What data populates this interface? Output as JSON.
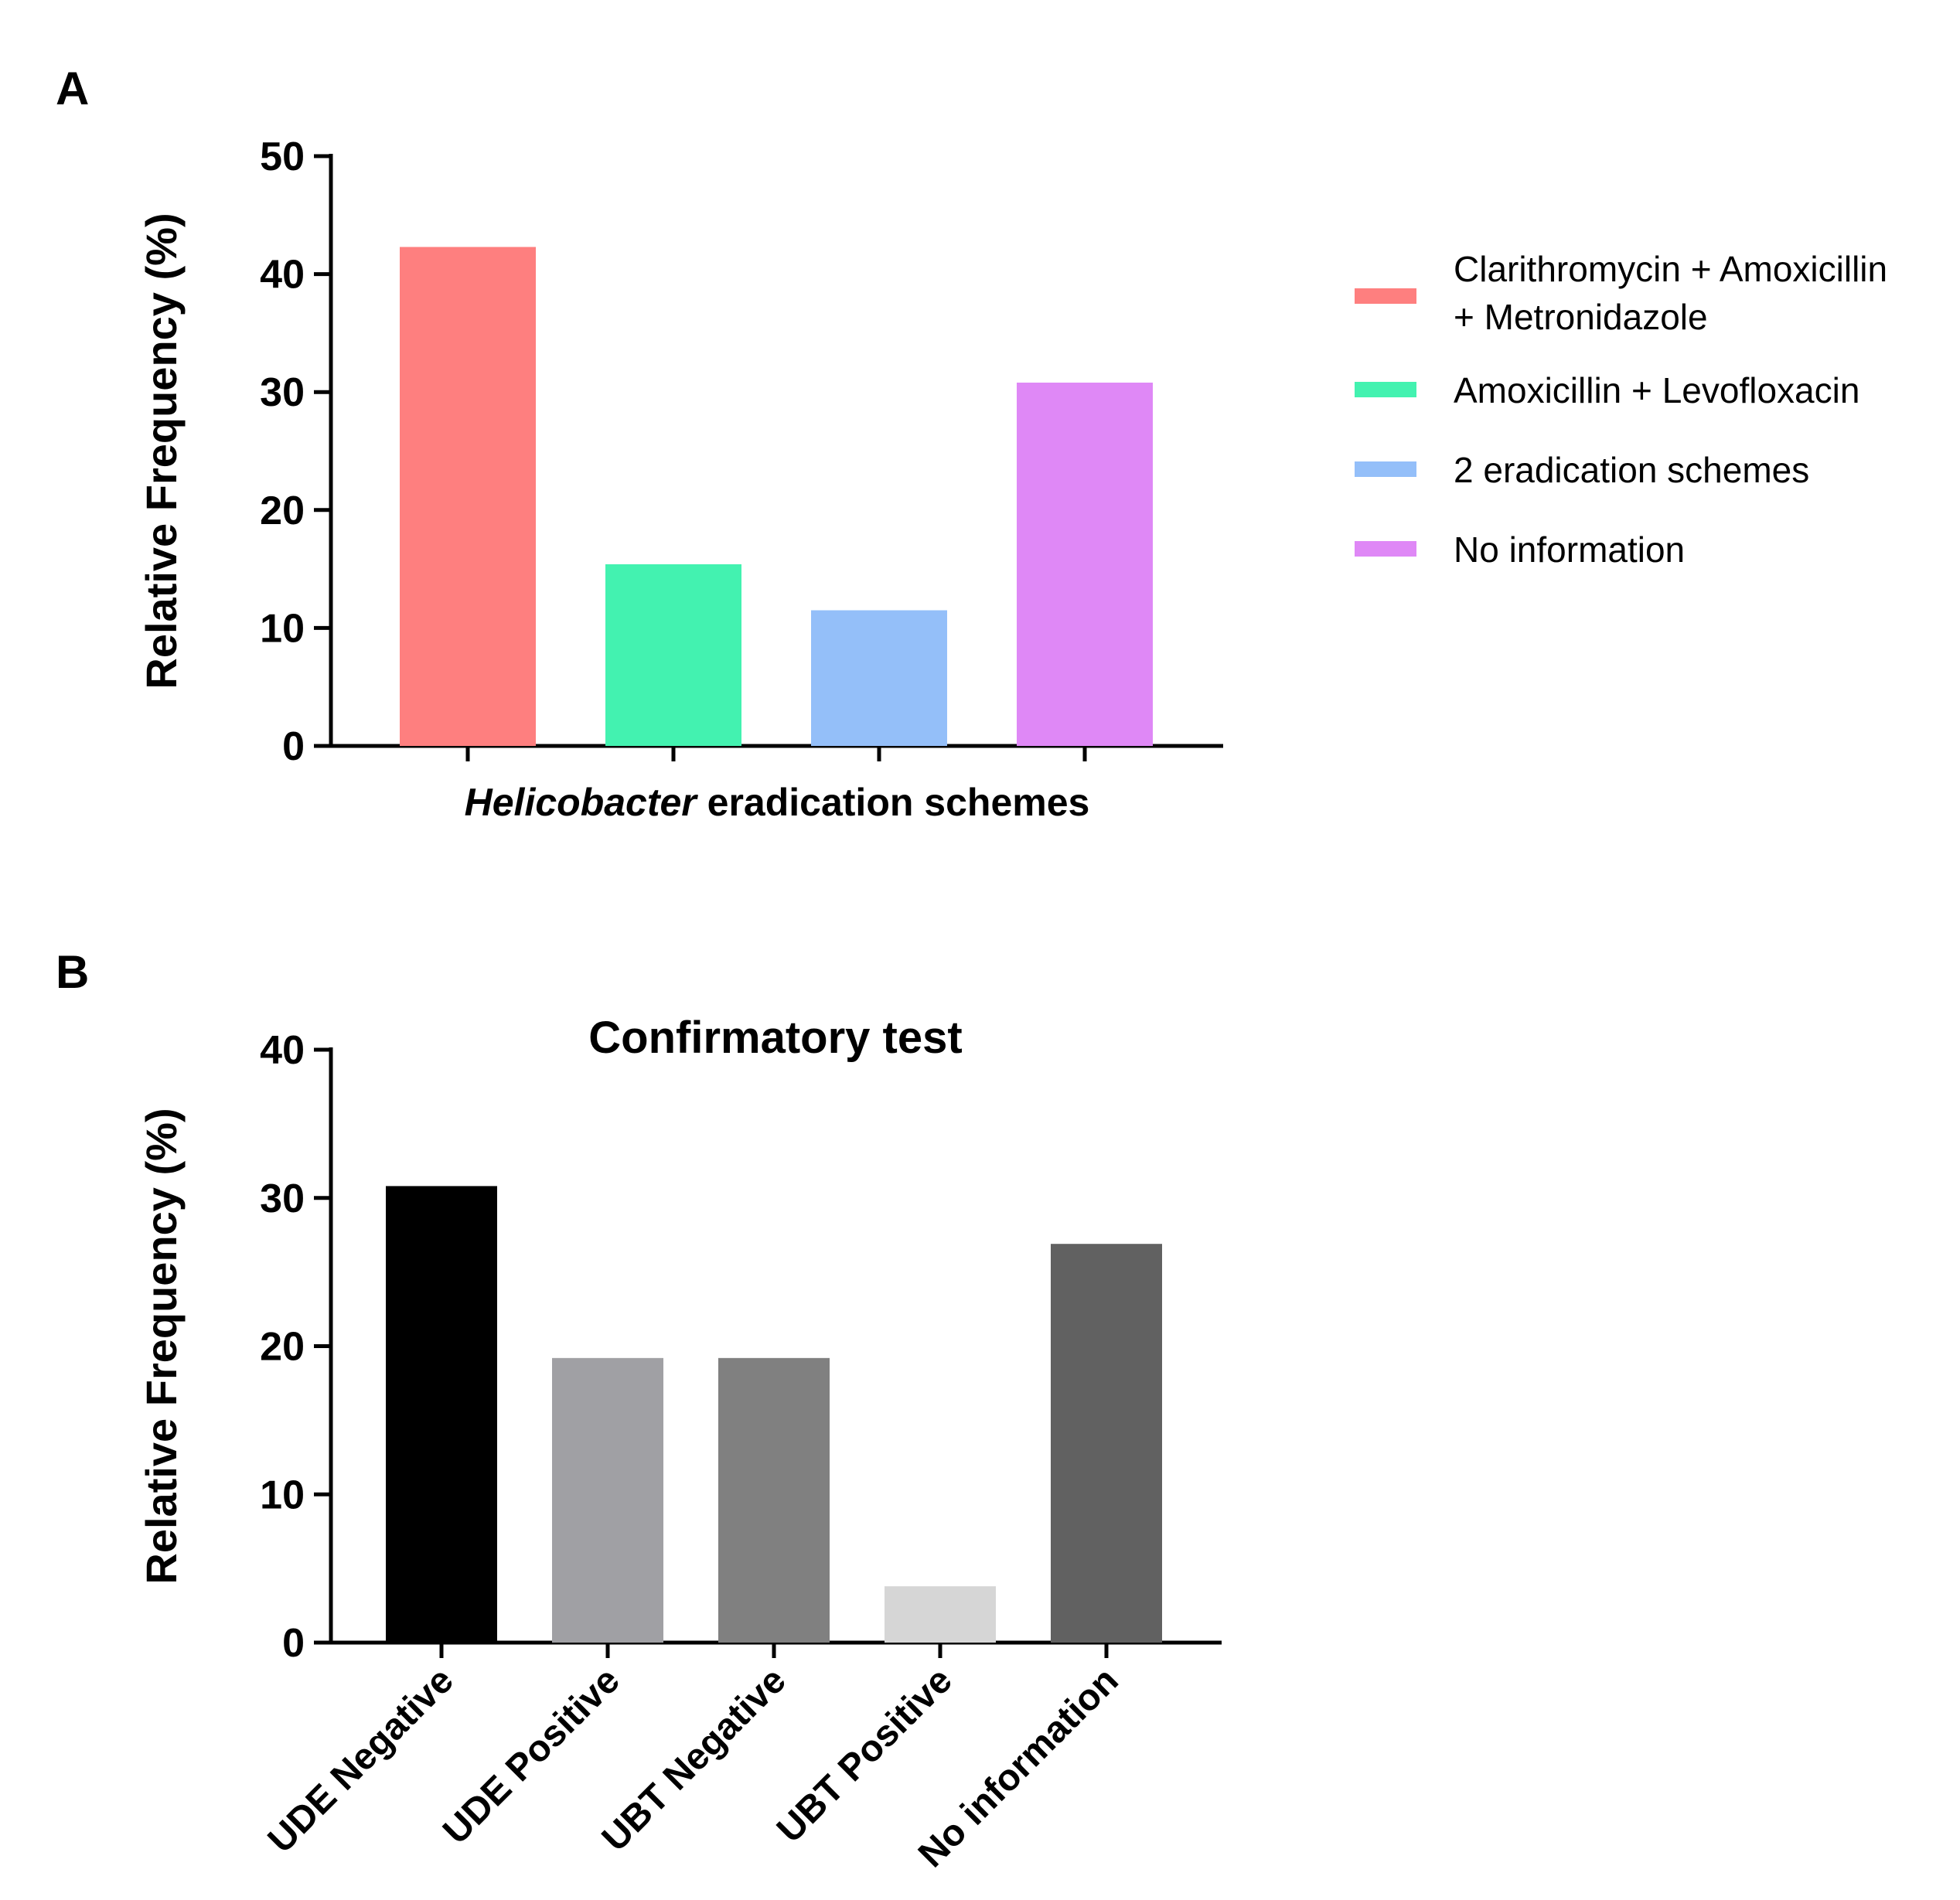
{
  "panels": {
    "a": {
      "letter": "A"
    },
    "b": {
      "letter": "B"
    }
  },
  "chart_data": [
    {
      "type": "bar",
      "title": "",
      "xlabel_parts": {
        "italic": "Helicobacter",
        "rest": " eradication schemes"
      },
      "ylabel": "Relative Frequency (%)",
      "ylim": [
        0,
        50
      ],
      "yticks": [
        "0",
        "10",
        "20",
        "30",
        "40",
        "50"
      ],
      "categories": [
        "Clarithromycin + Amoxicillin + Metronidazole",
        "Amoxicillin + Levofloxacin",
        "2 eradication schemes",
        "No information"
      ],
      "values": [
        42.3,
        15.4,
        11.5,
        30.8
      ],
      "colors": [
        "#fe7f7f",
        "#43f2b0",
        "#94bff9",
        "#df88f6"
      ],
      "legend": {
        "position": "right",
        "items": [
          {
            "lines": [
              "Clarithromycin + Amoxicillin",
              "+ Metronidazole"
            ],
            "color": "#fe7f7f"
          },
          {
            "lines": [
              "Amoxicillin + Levofloxacin"
            ],
            "color": "#43f2b0"
          },
          {
            "lines": [
              "2 eradication schemes"
            ],
            "color": "#94bff9"
          },
          {
            "lines": [
              "No information"
            ],
            "color": "#df88f6"
          }
        ]
      },
      "grid": false
    },
    {
      "type": "bar",
      "title": "Confirmatory test",
      "xlabel": "",
      "ylabel": "Relative Frequency (%)",
      "ylim": [
        0,
        40
      ],
      "yticks": [
        "0",
        "10",
        "20",
        "30",
        "40"
      ],
      "categories": [
        "UDE Negative",
        "UDE Positive",
        "UBT Negative",
        "UBT Positive",
        "No information"
      ],
      "values": [
        30.8,
        19.2,
        19.2,
        3.8,
        26.9
      ],
      "colors": [
        "#000000",
        "#a0a0a4",
        "#808080",
        "#d6d6d6",
        "#616161"
      ],
      "grid": false
    }
  ]
}
